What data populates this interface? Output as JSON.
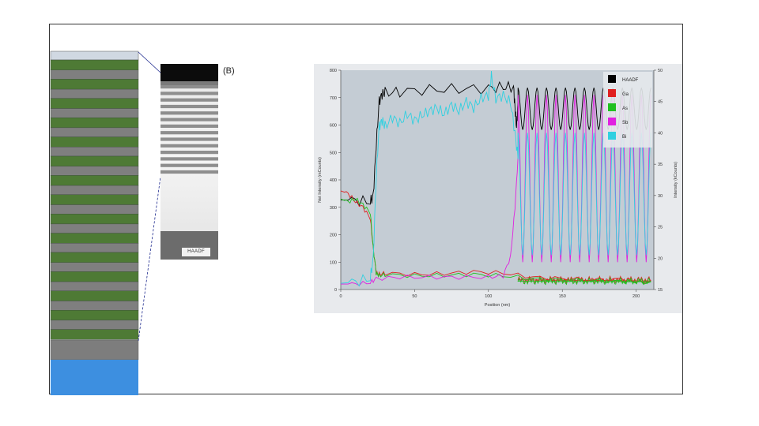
{
  "tem_image": {
    "panel_label": "(B)",
    "caption": "HAADF"
  },
  "chart_data": {
    "type": "line",
    "title": "",
    "xlabel": "Position (nm)",
    "ylabel": "Net Intensity (mCounts)",
    "y2label": "Intensity (kCounts)",
    "xlim": [
      0,
      212
    ],
    "ylim": [
      0,
      800
    ],
    "y2lim": [
      15,
      50
    ],
    "x_ticks": [
      0,
      50,
      100,
      150,
      200
    ],
    "y_ticks": [
      0,
      100,
      200,
      300,
      400,
      500,
      600,
      700,
      800
    ],
    "y2_ticks": [
      15,
      20,
      25,
      30,
      35,
      40,
      45,
      50
    ],
    "legend_position": "top-right",
    "grid": false,
    "series": [
      {
        "name": "HAADF",
        "color": "#000000",
        "axis": "right",
        "x": [
          0,
          10,
          20,
          22,
          24,
          26,
          28,
          30,
          40,
          60,
          80,
          100,
          110,
          117,
          118,
          119,
          120
        ],
        "values": [
          29.3,
          29.2,
          29.0,
          30.0,
          38.0,
          45.0,
          46.2,
          46.4,
          46.6,
          46.9,
          47.0,
          47.1,
          47.3,
          47.3,
          44.0,
          41.0,
          44.5
        ]
      },
      {
        "name": "Ga",
        "color": "#e02020",
        "axis": "left",
        "x": [
          0,
          5,
          10,
          15,
          20,
          22,
          24,
          26,
          30,
          50,
          70,
          90,
          110,
          130,
          150,
          170,
          190,
          200,
          210
        ],
        "values": [
          360,
          350,
          320,
          300,
          260,
          150,
          60,
          55,
          60,
          55,
          58,
          65,
          60,
          45,
          40,
          35,
          38,
          30,
          25
        ]
      },
      {
        "name": "As",
        "color": "#20c020",
        "axis": "left",
        "x": [
          0,
          5,
          10,
          15,
          20,
          22,
          24,
          26,
          30,
          50,
          70,
          90,
          110,
          130,
          150,
          170,
          190,
          200,
          210
        ],
        "values": [
          330,
          320,
          330,
          310,
          280,
          150,
          60,
          50,
          55,
          50,
          52,
          55,
          50,
          40,
          35,
          32,
          30,
          28,
          22
        ]
      },
      {
        "name": "Sb",
        "color": "#e020e0",
        "axis": "left",
        "x": [
          0,
          10,
          20,
          24,
          40,
          60,
          80,
          100,
          110,
          115,
          118,
          120
        ],
        "values": [
          20,
          20,
          25,
          40,
          45,
          45,
          45,
          45,
          50,
          120,
          300,
          480
        ]
      },
      {
        "name": "Bi",
        "color": "#30d0e0",
        "axis": "right",
        "x": [
          0,
          10,
          20,
          22,
          24,
          26,
          28,
          30,
          35,
          40,
          45,
          50,
          55,
          60,
          65,
          70,
          75,
          80,
          85,
          90,
          95,
          100,
          102,
          105,
          110,
          115,
          118,
          120
        ],
        "values": [
          16.0,
          16.2,
          16.8,
          20.0,
          33.0,
          41.0,
          42.0,
          41.0,
          42.5,
          41.5,
          43.0,
          42.0,
          42.8,
          43.5,
          44.0,
          43.0,
          44.5,
          43.5,
          45.0,
          44.0,
          45.5,
          46.0,
          49.0,
          45.5,
          46.0,
          44.8,
          40.0,
          36.0
        ]
      }
    ],
    "superlattice": {
      "x_start": 120,
      "x_end": 210,
      "periods": 14,
      "HAADF": {
        "axis": "right",
        "peak": 47.2,
        "trough": 40.5
      },
      "Sb": {
        "axis": "left",
        "peak": 710,
        "trough": 100
      },
      "Bi": {
        "axis": "right",
        "peak": 40.0,
        "trough": 20.5
      },
      "Ga": {
        "axis": "left",
        "level": 35
      },
      "As": {
        "axis": "left",
        "level": 30
      }
    }
  }
}
